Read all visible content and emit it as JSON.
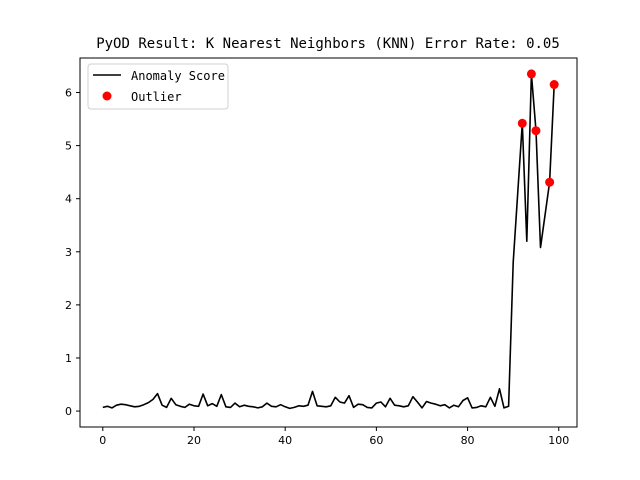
{
  "chart_data": {
    "type": "line",
    "title": "PyOD Result: K Nearest Neighbors (KNN) Error Rate: 0.05",
    "xlabel": "",
    "ylabel": "",
    "xlim": [
      -5,
      104
    ],
    "ylim": [
      -0.3,
      6.65
    ],
    "xticks": [
      0,
      20,
      40,
      60,
      80,
      100
    ],
    "yticks": [
      0,
      1,
      2,
      3,
      4,
      5,
      6
    ],
    "grid": false,
    "legend_position": "upper left",
    "series": [
      {
        "name": "Anomaly Score",
        "kind": "line",
        "color": "#000000",
        "x": [
          0,
          1,
          2,
          3,
          4,
          5,
          6,
          7,
          8,
          9,
          10,
          11,
          12,
          13,
          14,
          15,
          16,
          17,
          18,
          19,
          20,
          21,
          22,
          23,
          24,
          25,
          26,
          27,
          28,
          29,
          30,
          31,
          32,
          33,
          34,
          35,
          36,
          37,
          38,
          39,
          40,
          41,
          42,
          43,
          44,
          45,
          46,
          47,
          48,
          49,
          50,
          51,
          52,
          53,
          54,
          55,
          56,
          57,
          58,
          59,
          60,
          61,
          62,
          63,
          64,
          65,
          66,
          67,
          68,
          69,
          70,
          71,
          72,
          73,
          74,
          75,
          76,
          77,
          78,
          79,
          80,
          81,
          82,
          83,
          84,
          85,
          86,
          87,
          88,
          89,
          90,
          91,
          92,
          93,
          94,
          95,
          96,
          97,
          98,
          99
        ],
        "values": [
          0.07,
          0.09,
          0.06,
          0.11,
          0.13,
          0.12,
          0.1,
          0.08,
          0.09,
          0.12,
          0.16,
          0.22,
          0.33,
          0.11,
          0.07,
          0.24,
          0.12,
          0.09,
          0.07,
          0.13,
          0.1,
          0.09,
          0.32,
          0.1,
          0.14,
          0.09,
          0.31,
          0.08,
          0.07,
          0.15,
          0.08,
          0.11,
          0.09,
          0.08,
          0.06,
          0.08,
          0.15,
          0.09,
          0.08,
          0.12,
          0.08,
          0.05,
          0.07,
          0.1,
          0.09,
          0.11,
          0.37,
          0.1,
          0.09,
          0.08,
          0.1,
          0.26,
          0.17,
          0.15,
          0.29,
          0.07,
          0.13,
          0.12,
          0.07,
          0.06,
          0.15,
          0.17,
          0.08,
          0.24,
          0.11,
          0.1,
          0.08,
          0.1,
          0.27,
          0.17,
          0.06,
          0.18,
          0.15,
          0.13,
          0.1,
          0.12,
          0.06,
          0.11,
          0.08,
          0.2,
          0.25,
          0.06,
          0.07,
          0.1,
          0.08,
          0.26,
          0.09,
          0.42,
          0.06,
          0.09,
          2.8,
          4.1,
          5.42,
          3.2,
          6.35,
          5.28,
          3.08,
          3.7,
          4.31,
          6.15
        ]
      },
      {
        "name": "Outlier",
        "kind": "scatter",
        "color": "#ff0000",
        "x": [
          92,
          94,
          95,
          98,
          99
        ],
        "values": [
          5.42,
          6.35,
          5.28,
          4.31,
          6.15
        ]
      }
    ]
  },
  "legend": {
    "items": [
      {
        "label": "Anomaly Score",
        "color": "#000000",
        "marker": "line"
      },
      {
        "label": "Outlier",
        "color": "#ff0000",
        "marker": "circle"
      }
    ]
  }
}
